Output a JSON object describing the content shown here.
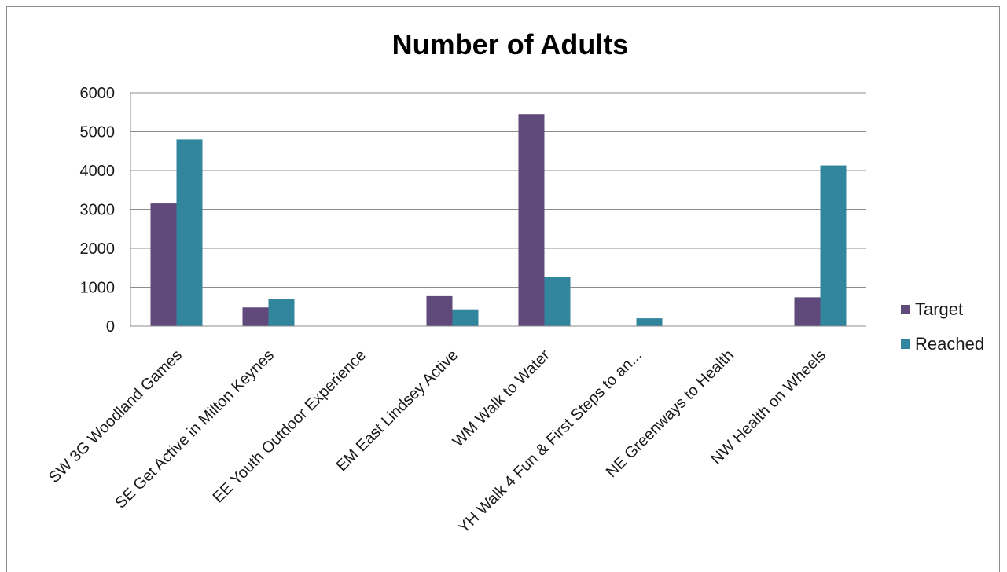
{
  "chart_data": {
    "type": "bar",
    "title": "Number of Adults",
    "categories": [
      "SW 3G Woodland Games",
      "SE Get Active in Milton Keynes",
      "EE Youth Outdoor Experience",
      "EM East Lindsey Active",
      "WM Walk to Water",
      "YH Walk 4 Fun & First Steps to an...",
      "NE Greenways to Health",
      "NW Health on Wheels"
    ],
    "series": [
      {
        "name": "Target",
        "color": "#604a7b",
        "values": [
          3150,
          480,
          0,
          770,
          5450,
          0,
          0,
          740
        ]
      },
      {
        "name": "Reached",
        "color": "#31859c",
        "values": [
          4800,
          700,
          0,
          430,
          1260,
          200,
          0,
          4130
        ]
      }
    ],
    "ylim": [
      0,
      6000
    ],
    "yticks": [
      0,
      1000,
      2000,
      3000,
      4000,
      5000,
      6000
    ],
    "grid": true,
    "legend": "right"
  }
}
